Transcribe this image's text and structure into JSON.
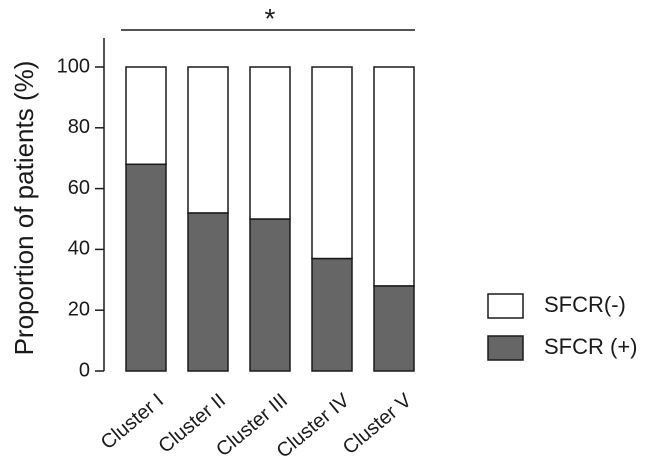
{
  "chart_data": {
    "type": "bar",
    "stacked": true,
    "categories": [
      "Cluster I",
      "Cluster II",
      "Cluster III",
      "Cluster IV",
      "Cluster V"
    ],
    "series": [
      {
        "name": "SFCR (+)",
        "values": [
          68,
          52,
          50,
          37,
          28
        ],
        "color": "#666666"
      },
      {
        "name": "SFCR(-)",
        "values": [
          32,
          48,
          50,
          63,
          72
        ],
        "color": "#ffffff"
      }
    ],
    "ylabel": "Proportion of patients (%)",
    "xlabel": "",
    "ylim": [
      0,
      110
    ],
    "yticks": [
      0,
      20,
      40,
      60,
      80,
      100
    ],
    "grid": false,
    "legend": {
      "placement": "right",
      "entries": [
        "SFCR(-)",
        "SFCR (+)"
      ]
    },
    "annotations": [
      {
        "text": "*",
        "type": "significance-bracket",
        "from": "Cluster I",
        "to": "Cluster V"
      }
    ]
  }
}
